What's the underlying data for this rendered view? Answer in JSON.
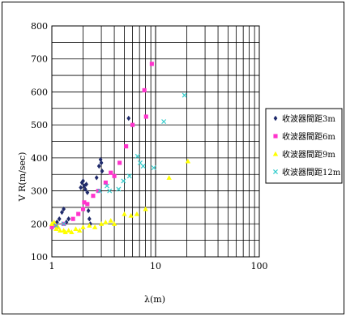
{
  "chart_data": {
    "type": "scatter",
    "title": "",
    "xlabel": "λ(m)",
    "ylabel": "V R(m/sec)",
    "xscale": "log",
    "xlim": [
      1,
      100
    ],
    "ylim": [
      100,
      800
    ],
    "xticks": [
      1,
      10,
      100
    ],
    "xtick_labels": [
      "1",
      "10",
      "100"
    ],
    "yticks": [
      100,
      200,
      300,
      400,
      500,
      600,
      700,
      800
    ],
    "ytick_labels": [
      "100",
      "200",
      "300",
      "400",
      "500",
      "600",
      "700",
      "800"
    ],
    "grid": true,
    "legend_position": "right",
    "series": [
      {
        "name": "收波器間距3m",
        "marker": "diamond",
        "color": "#1f2a6b",
        "points": [
          [
            1.05,
            200
          ],
          [
            1.12,
            205
          ],
          [
            1.18,
            215
          ],
          [
            1.25,
            235
          ],
          [
            1.3,
            245
          ],
          [
            1.38,
            205
          ],
          [
            1.45,
            215
          ],
          [
            1.9,
            310
          ],
          [
            1.95,
            325
          ],
          [
            2.0,
            330
          ],
          [
            2.05,
            315
          ],
          [
            2.1,
            305
          ],
          [
            2.15,
            320
          ],
          [
            2.2,
            295
          ],
          [
            2.25,
            240
          ],
          [
            2.3,
            215
          ],
          [
            2.35,
            200
          ],
          [
            2.7,
            340
          ],
          [
            2.85,
            375
          ],
          [
            2.95,
            395
          ],
          [
            3.0,
            385
          ],
          [
            3.05,
            360
          ],
          [
            5.5,
            520
          ]
        ]
      },
      {
        "name": "收波器間距6m",
        "marker": "square",
        "color": "#ff33cc",
        "points": [
          [
            1.0,
            190
          ],
          [
            1.1,
            195
          ],
          [
            1.3,
            200
          ],
          [
            1.6,
            215
          ],
          [
            1.8,
            230
          ],
          [
            2.0,
            245
          ],
          [
            2.05,
            265
          ],
          [
            2.2,
            260
          ],
          [
            2.5,
            285
          ],
          [
            2.8,
            300
          ],
          [
            3.3,
            325
          ],
          [
            3.7,
            355
          ],
          [
            4.0,
            345
          ],
          [
            4.5,
            385
          ],
          [
            5.2,
            435
          ],
          [
            6.0,
            500
          ],
          [
            7.8,
            605
          ],
          [
            8.1,
            525
          ],
          [
            9.2,
            685
          ]
        ]
      },
      {
        "name": "收波器間距9m",
        "marker": "triangle",
        "color": "#ffff00",
        "points": [
          [
            1.0,
            200
          ],
          [
            1.05,
            205
          ],
          [
            1.1,
            185
          ],
          [
            1.15,
            190
          ],
          [
            1.2,
            180
          ],
          [
            1.3,
            180
          ],
          [
            1.35,
            175
          ],
          [
            1.45,
            180
          ],
          [
            1.55,
            175
          ],
          [
            1.7,
            185
          ],
          [
            1.85,
            180
          ],
          [
            2.0,
            190
          ],
          [
            2.3,
            195
          ],
          [
            2.6,
            190
          ],
          [
            3.0,
            200
          ],
          [
            3.3,
            205
          ],
          [
            3.7,
            210
          ],
          [
            4.0,
            200
          ],
          [
            5.0,
            230
          ],
          [
            5.8,
            225
          ],
          [
            6.6,
            230
          ],
          [
            8.0,
            245
          ],
          [
            13.5,
            340
          ],
          [
            20.5,
            390
          ]
        ]
      },
      {
        "name": "收波器間距12m",
        "marker": "x",
        "color": "#33cccc",
        "points": [
          [
            1.1,
            195
          ],
          [
            1.3,
            200
          ],
          [
            2.9,
            300
          ],
          [
            3.4,
            315
          ],
          [
            3.6,
            300
          ],
          [
            4.4,
            305
          ],
          [
            4.9,
            330
          ],
          [
            5.6,
            345
          ],
          [
            6.7,
            405
          ],
          [
            7.1,
            385
          ],
          [
            7.6,
            375
          ],
          [
            9.6,
            370
          ],
          [
            12.0,
            510
          ],
          [
            19.0,
            590
          ]
        ]
      }
    ]
  }
}
